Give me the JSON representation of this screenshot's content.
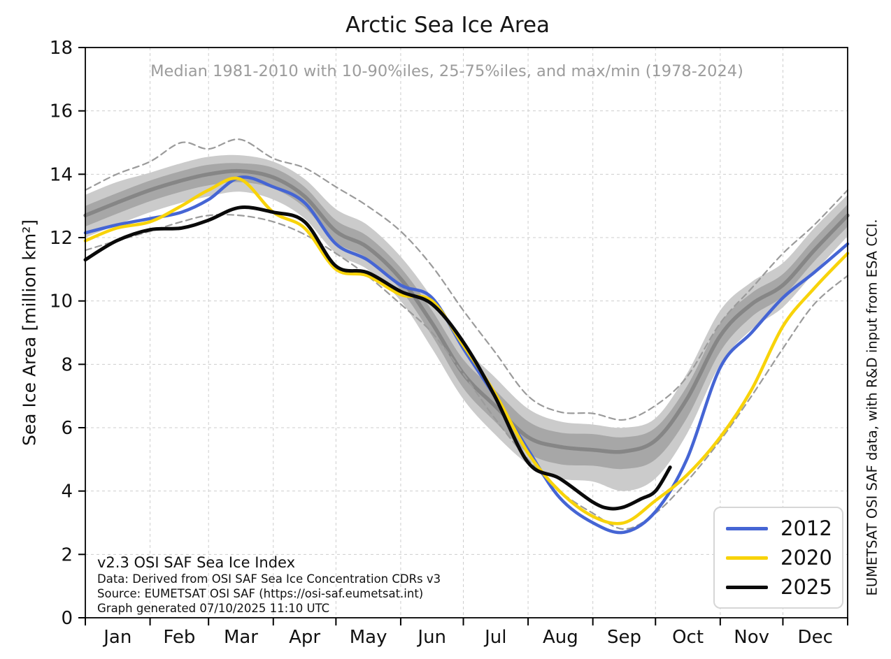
{
  "title": "Arctic Sea Ice Area",
  "subtitle": "Median 1981-2010 with 10-90%iles, 25-75%iles, and max/min (1978-2024)",
  "credit_vertical": "EUMETSAT OSI SAF data, with R&D input from ESA CCI.",
  "footnotes": [
    "v2.3 OSI SAF Sea Ice Index",
    "Data: Derived from OSI SAF Sea Ice Concentration CDRs v3",
    "Source: EUMETSAT OSI SAF (https://osi-saf.eumetsat.int)",
    "Graph generated 07/10/2025 11:10 UTC"
  ],
  "legend_position": "lower right",
  "chart_data": {
    "type": "line",
    "title": "Arctic Sea Ice Area",
    "ylabel": "Sea Ice Area [million km²]",
    "ylim": [
      0,
      18
    ],
    "yticks": [
      0,
      2,
      4,
      6,
      8,
      10,
      12,
      14,
      16,
      18
    ],
    "grid": true,
    "months": [
      "Jan",
      "Feb",
      "Mar",
      "Apr",
      "May",
      "Jun",
      "Jul",
      "Aug",
      "Sep",
      "Oct",
      "Nov",
      "Dec"
    ],
    "month_days": [
      0,
      31,
      59,
      90,
      120,
      151,
      181,
      212,
      243,
      273,
      304,
      334,
      365
    ],
    "x_days": [
      0,
      15,
      31,
      46,
      59,
      74,
      90,
      105,
      120,
      135,
      151,
      166,
      181,
      196,
      212,
      227,
      243,
      258,
      273,
      288,
      304,
      319,
      334,
      349,
      365
    ],
    "x_unit": "day of year",
    "value_unit": "million km²",
    "climatology": {
      "label": "Median 1981-2010",
      "median": [
        12.7,
        13.1,
        13.5,
        13.8,
        14.0,
        14.1,
        13.9,
        13.3,
        12.2,
        11.7,
        10.7,
        9.3,
        7.7,
        6.7,
        5.7,
        5.4,
        5.3,
        5.25,
        5.6,
        6.9,
        8.9,
        9.9,
        10.5,
        11.6,
        12.7
      ],
      "p90": [
        13.35,
        13.75,
        14.05,
        14.35,
        14.55,
        14.6,
        14.4,
        13.85,
        12.9,
        12.4,
        11.4,
        10.1,
        8.6,
        7.6,
        6.6,
        6.2,
        6.1,
        6.0,
        6.3,
        7.7,
        9.7,
        10.6,
        11.2,
        12.3,
        13.35
      ],
      "p75": [
        13.0,
        13.4,
        13.8,
        14.1,
        14.3,
        14.35,
        14.2,
        13.6,
        12.55,
        12.05,
        11.05,
        9.7,
        8.15,
        7.2,
        6.2,
        5.85,
        5.8,
        5.7,
        6.0,
        7.3,
        9.3,
        10.25,
        10.85,
        11.95,
        13.05
      ],
      "p25": [
        12.35,
        12.75,
        13.15,
        13.45,
        13.65,
        13.75,
        13.55,
        12.95,
        11.85,
        11.35,
        10.35,
        8.9,
        7.25,
        6.2,
        5.2,
        4.85,
        4.8,
        4.7,
        5.0,
        6.3,
        8.4,
        9.5,
        10.15,
        11.25,
        12.35
      ],
      "p10": [
        12.0,
        12.4,
        12.8,
        13.1,
        13.3,
        13.45,
        13.2,
        12.6,
        11.5,
        11.0,
        10.0,
        8.5,
        6.9,
        5.8,
        4.85,
        4.4,
        4.3,
        4.0,
        4.4,
        5.8,
        8.0,
        9.1,
        9.8,
        10.9,
        12.05
      ],
      "max": [
        13.5,
        14.0,
        14.4,
        15.0,
        14.8,
        15.1,
        14.5,
        14.2,
        13.6,
        13.0,
        12.2,
        11.1,
        9.7,
        8.4,
        7.0,
        6.5,
        6.45,
        6.25,
        6.7,
        7.6,
        9.3,
        10.4,
        11.5,
        12.4,
        13.5
      ],
      "min": [
        11.6,
        11.9,
        12.2,
        12.5,
        12.7,
        12.7,
        12.5,
        12.1,
        11.5,
        10.8,
        9.9,
        9.0,
        7.7,
        6.3,
        5.0,
        4.0,
        3.3,
        2.8,
        3.3,
        4.3,
        5.6,
        7.0,
        8.5,
        9.9,
        10.8
      ]
    },
    "series": [
      {
        "name": "2012",
        "color": "#4565d4",
        "values": [
          12.15,
          12.4,
          12.6,
          12.8,
          13.2,
          13.9,
          13.6,
          13.1,
          11.8,
          11.3,
          10.5,
          10.1,
          8.5,
          7.0,
          5.3,
          3.8,
          3.0,
          2.7,
          3.35,
          5.0,
          7.9,
          9.0,
          10.1,
          10.9,
          11.8
        ]
      },
      {
        "name": "2020",
        "color": "#f8d30a",
        "values": [
          11.9,
          12.3,
          12.5,
          13.0,
          13.5,
          13.85,
          12.8,
          12.3,
          11.0,
          10.8,
          10.2,
          10.0,
          8.6,
          7.1,
          5.2,
          4.0,
          3.2,
          3.0,
          3.7,
          4.5,
          5.7,
          7.2,
          9.2,
          10.4,
          11.5
        ]
      },
      {
        "name": "2025",
        "color": "#0a0a0a",
        "days": [
          0,
          15,
          31,
          46,
          59,
          74,
          90,
          105,
          120,
          135,
          151,
          166,
          181,
          196,
          212,
          227,
          243,
          251,
          258,
          266,
          273,
          280
        ],
        "values": [
          11.3,
          11.9,
          12.25,
          12.3,
          12.55,
          12.95,
          12.8,
          12.5,
          11.1,
          10.9,
          10.3,
          9.9,
          8.7,
          7.0,
          4.9,
          4.4,
          3.65,
          3.45,
          3.5,
          3.75,
          4.0,
          4.75
        ]
      }
    ],
    "colors": {
      "median_line": "#868686",
      "band_25_75": "#a7a7a7",
      "band_10_90": "#cbcbcb",
      "maxmin_dashed": "#9b9b9b",
      "gridline": "#cdcdcd",
      "axis": "#000000"
    }
  }
}
